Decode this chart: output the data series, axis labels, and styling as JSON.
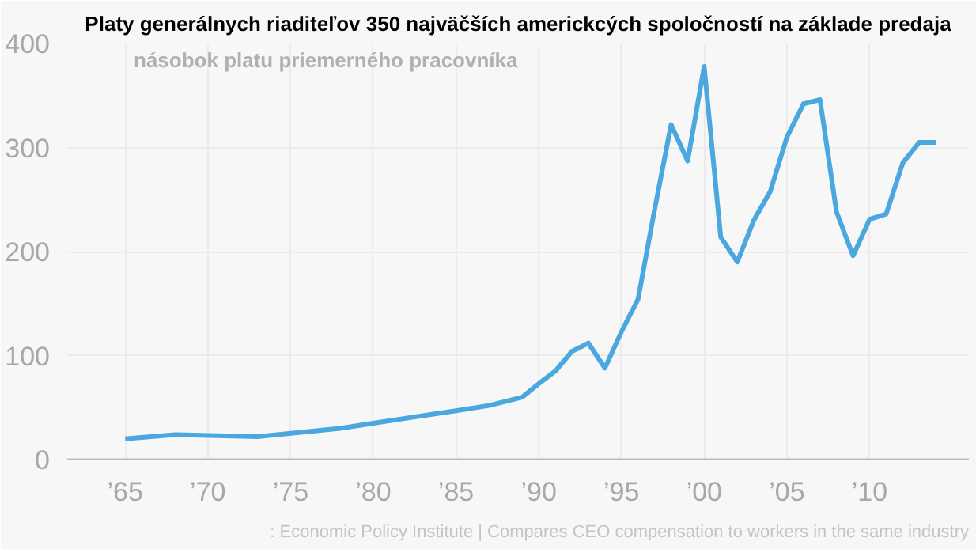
{
  "chart_data": {
    "type": "line",
    "title": "Platy generálnych riaditeľov 350 najväčších americkcých spoločností na základe predaja",
    "subtitle": "násobok platu priemerného pracovníka",
    "annotations": [
      ": Economic Policy Institute | Compares CEO compensation to workers in the same industry"
    ],
    "x": [
      1965,
      1968,
      1973,
      1978,
      1980,
      1985,
      1987,
      1989,
      1990,
      1991,
      1992,
      1993,
      1994,
      1995,
      1996,
      1997,
      1998,
      1999,
      2000,
      2001,
      2002,
      2003,
      2004,
      2005,
      2006,
      2007,
      2008,
      2009,
      2010,
      2011,
      2012,
      2013,
      2014
    ],
    "series": [
      {
        "color": "#4aa8de",
        "values": [
          20,
          24,
          22,
          30,
          35,
          47,
          52,
          60,
          73,
          85,
          104,
          112,
          88,
          123,
          154,
          240,
          322,
          287,
          378,
          214,
          190,
          230,
          258,
          310,
          342,
          346,
          238,
          196,
          231,
          236,
          285,
          305,
          305
        ]
      }
    ],
    "xlim": [
      1961.5,
      2016
    ],
    "ylim": [
      0,
      400
    ],
    "xticks": [
      {
        "value": 1965,
        "label": "’65"
      },
      {
        "value": 1970,
        "label": "’70"
      },
      {
        "value": 1975,
        "label": "’75"
      },
      {
        "value": 1980,
        "label": "’80"
      },
      {
        "value": 1985,
        "label": "’85"
      },
      {
        "value": 1990,
        "label": "’90"
      },
      {
        "value": 1995,
        "label": "’95"
      },
      {
        "value": 2000,
        "label": "’00"
      },
      {
        "value": 2005,
        "label": "’05"
      },
      {
        "value": 2010,
        "label": "’10"
      }
    ],
    "yticks": [
      0,
      100,
      200,
      300,
      400
    ],
    "grid": true,
    "line_style": "solid",
    "marker": "none"
  }
}
